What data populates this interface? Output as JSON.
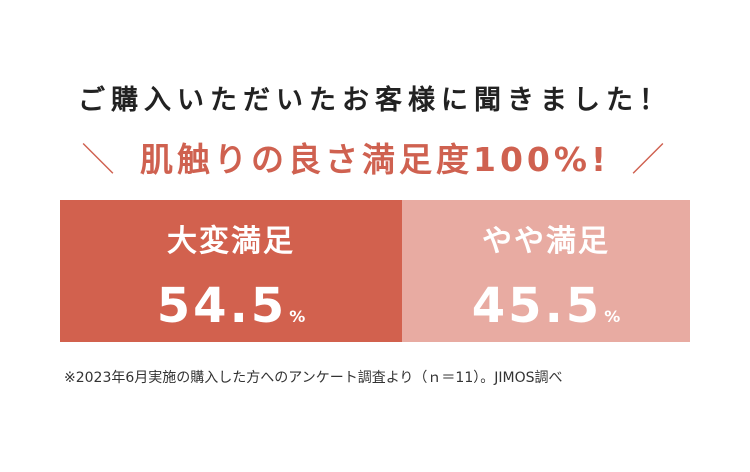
{
  "intro": "ご購入いただいたお客様に聞きました！",
  "headline": {
    "left_mark": "＼",
    "text": "肌触りの良さ満足度100%!",
    "right_mark": "／"
  },
  "results": [
    {
      "label": "大変満足",
      "value": "54.5",
      "unit": "%"
    },
    {
      "label": "やや満足",
      "value": "45.5",
      "unit": "%"
    }
  ],
  "footnote": "※2023年6月実施の購入した方へのアンケート調査より（ｎ＝11）。JIMOS調べ",
  "colors": {
    "accent": "#cf6150",
    "primary_panel": "#d2614e",
    "secondary_panel": "#e8aba2",
    "body_text": "#222222"
  }
}
